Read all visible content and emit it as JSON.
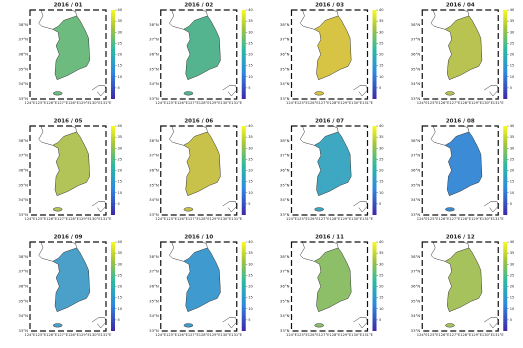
{
  "panels": [
    {
      "title": "2016 / 01",
      "color": "#6dbb7e"
    },
    {
      "title": "2016 / 02",
      "color": "#55b490"
    },
    {
      "title": "2016 / 03",
      "color": "#d8c444"
    },
    {
      "title": "2016 / 04",
      "color": "#b9c352"
    },
    {
      "title": "2016 / 05",
      "color": "#b2c358"
    },
    {
      "title": "2016 / 06",
      "color": "#c8c24a"
    },
    {
      "title": "2016 / 07",
      "color": "#3ea7c2"
    },
    {
      "title": "2016 / 08",
      "color": "#3b8bd6"
    },
    {
      "title": "2016 / 09",
      "color": "#4aa0c9"
    },
    {
      "title": "2016 / 10",
      "color": "#3f9bcf"
    },
    {
      "title": "2016 / 11",
      "color": "#8cbf68"
    },
    {
      "title": "2016 / 12",
      "color": "#a6c25c"
    }
  ],
  "map": {
    "xlim": [
      124,
      131
    ],
    "ylim": [
      33,
      39
    ],
    "xticks": [
      {
        "value": 124,
        "label": "124°E"
      },
      {
        "value": 125,
        "label": "125°E"
      },
      {
        "value": 126,
        "label": "126°E"
      },
      {
        "value": 127,
        "label": "127°E"
      },
      {
        "value": 128,
        "label": "128°E"
      },
      {
        "value": 129,
        "label": "129°E"
      },
      {
        "value": 130,
        "label": "130°E"
      },
      {
        "value": 131,
        "label": "131°E"
      }
    ],
    "yticks": [
      {
        "value": 33,
        "label": "33°N"
      },
      {
        "value": 34,
        "label": "34°N"
      },
      {
        "value": 35,
        "label": "35°N"
      },
      {
        "value": 36,
        "label": "36°N"
      },
      {
        "value": 37,
        "label": "37°N"
      },
      {
        "value": 38,
        "label": "38°N"
      }
    ]
  },
  "colorbar": {
    "lim": [
      0,
      40
    ],
    "ticks": [
      5,
      10,
      15,
      20,
      25,
      30,
      35,
      40
    ]
  }
}
